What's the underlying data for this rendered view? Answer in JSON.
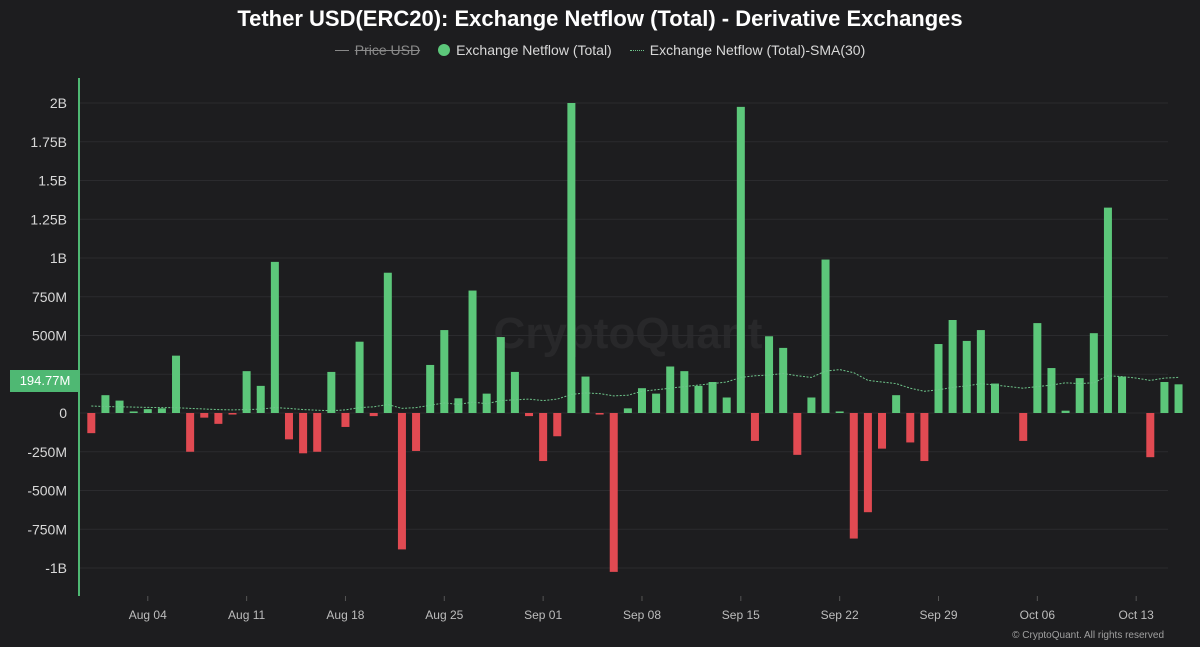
{
  "chart_data": {
    "type": "bar",
    "title": "Tether USD(ERC20): Exchange Netflow (Total) - Derivative Exchanges",
    "legend": [
      {
        "name": "Price USD",
        "style": "line",
        "active": false
      },
      {
        "name": "Exchange Netflow (Total)",
        "style": "dot",
        "active": true
      },
      {
        "name": "Exchange Netflow (Total)-SMA(30)",
        "style": "dotted",
        "active": true
      }
    ],
    "y_ticks": [
      "2B",
      "1.75B",
      "1.5B",
      "1.25B",
      "1B",
      "750M",
      "500M",
      "250M",
      "0",
      "-250M",
      "-500M",
      "-750M",
      "-1B"
    ],
    "ylim": [
      -1150,
      2000
    ],
    "unit": "M",
    "x_ticks": [
      "Aug 04",
      "Aug 11",
      "Aug 18",
      "Aug 25",
      "Sep 01",
      "Sep 08",
      "Sep 15",
      "Sep 22",
      "Sep 29",
      "Oct 06",
      "Oct 13"
    ],
    "start_date": "2024-07-31",
    "values": [
      -130,
      115,
      80,
      10,
      25,
      30,
      370,
      -250,
      -30,
      -70,
      -10,
      270,
      175,
      975,
      -170,
      -260,
      -250,
      265,
      -90,
      460,
      -20,
      905,
      -880,
      -245,
      310,
      535,
      95,
      790,
      125,
      490,
      265,
      -20,
      -310,
      -150,
      2000,
      235,
      -10,
      -1025,
      30,
      160,
      125,
      300,
      270,
      175,
      200,
      100,
      1975,
      -180,
      495,
      420,
      -270,
      100,
      990,
      10,
      -810,
      -640,
      -230,
      115,
      -190,
      -310,
      445,
      600,
      465,
      535,
      190,
      0,
      -180,
      580,
      290,
      15,
      225,
      515,
      1325,
      235,
      0,
      -285,
      200,
      185
    ],
    "sma": [
      45,
      42,
      40,
      38,
      36,
      35,
      34,
      30,
      26,
      22,
      20,
      22,
      25,
      35,
      30,
      22,
      18,
      15,
      20,
      35,
      40,
      55,
      30,
      35,
      50,
      65,
      55,
      70,
      60,
      80,
      85,
      90,
      80,
      90,
      120,
      130,
      125,
      110,
      115,
      140,
      150,
      160,
      170,
      180,
      190,
      200,
      230,
      240,
      245,
      255,
      240,
      230,
      270,
      280,
      260,
      210,
      200,
      190,
      160,
      140,
      150,
      165,
      175,
      190,
      180,
      170,
      160,
      170,
      180,
      195,
      190,
      195,
      240,
      235,
      225,
      210,
      225,
      230
    ],
    "current_value_label": "194.77M",
    "colors": {
      "positive": "#5cc77a",
      "negative": "#e14a52",
      "sma": "#6ec48a",
      "axis": "#4fb873",
      "background": "#1d1d1f"
    }
  },
  "watermark": "CryptoQuant",
  "copyright": "© CryptoQuant. All rights reserved"
}
